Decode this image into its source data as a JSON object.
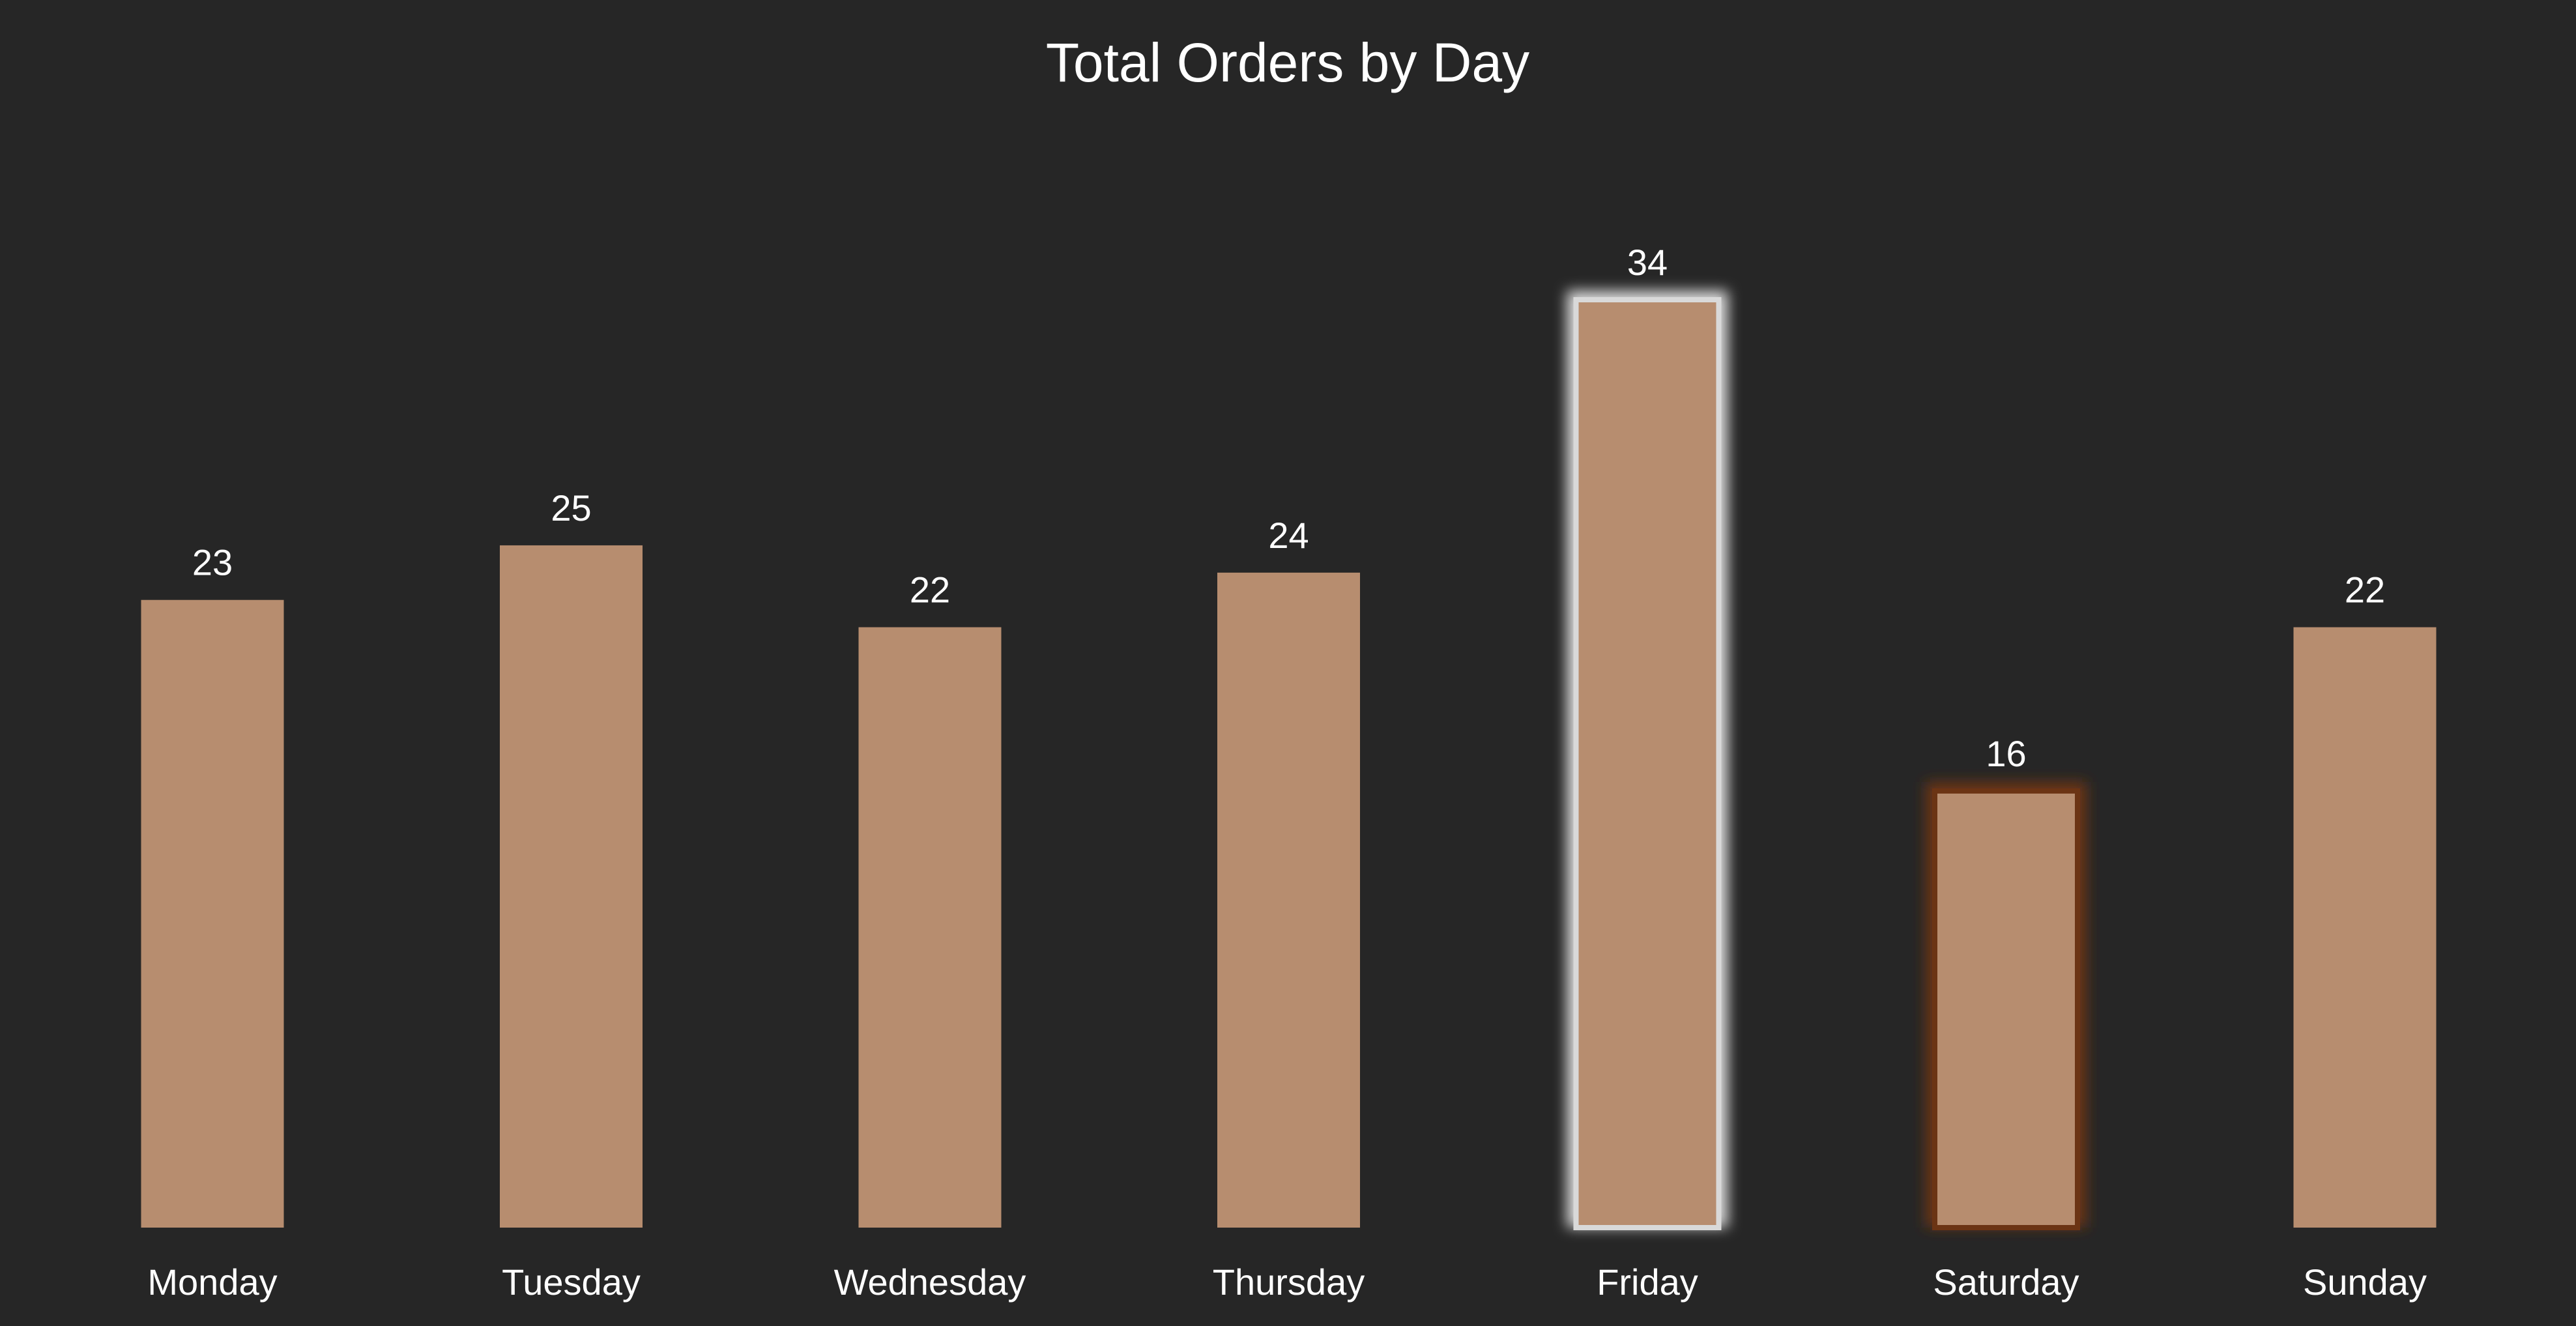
{
  "chart_data": {
    "type": "bar",
    "title": "Total Orders by Day",
    "categories": [
      "Monday",
      "Tuesday",
      "Wednesday",
      "Thursday",
      "Friday",
      "Saturday",
      "Sunday"
    ],
    "values": [
      23,
      25,
      22,
      24,
      34,
      16,
      22
    ],
    "xlabel": "",
    "ylabel": "",
    "ylim": [
      0,
      34
    ],
    "grid": false,
    "legend": "none",
    "data_labels": true,
    "highlights": {
      "max": "Friday",
      "min": "Saturday"
    }
  },
  "colors": {
    "background": "#262626",
    "bar": "#B78D6F",
    "text": "#FFFFFF",
    "highlight_max_glow": "#D9D9D9",
    "highlight_min_glow": "#6B3414"
  }
}
